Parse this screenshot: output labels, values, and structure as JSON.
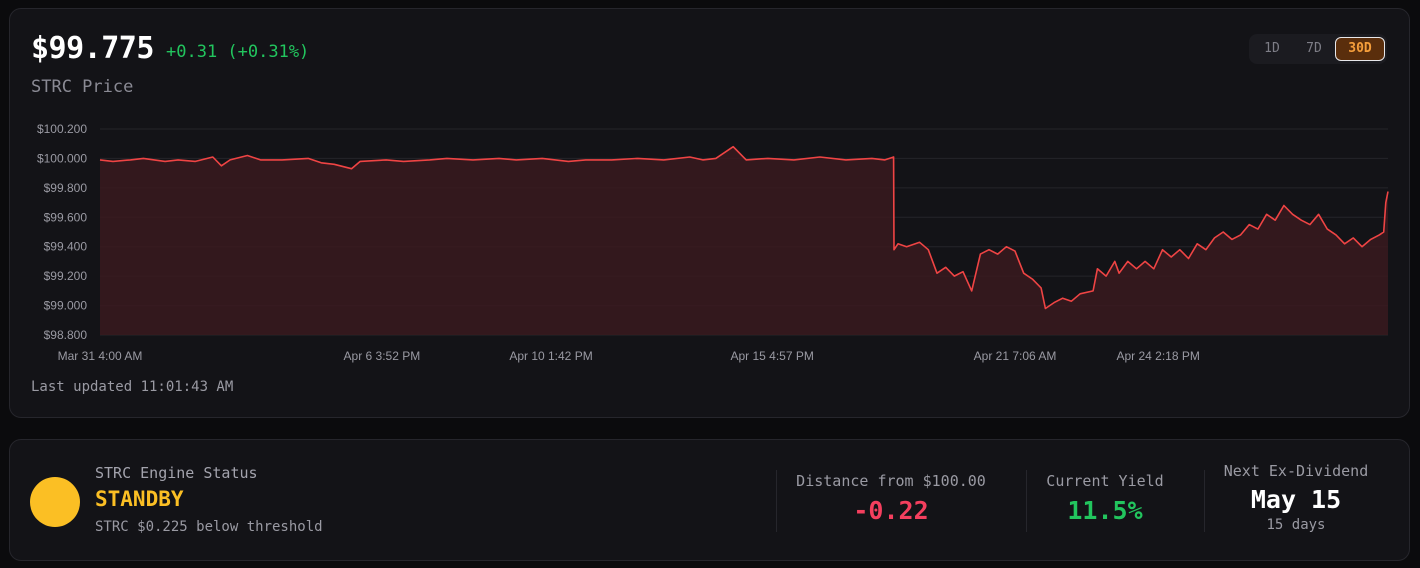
{
  "header": {
    "price": "$99.775",
    "change": "+0.31 (+0.31%)",
    "subtitle": "STRC Price",
    "last_updated": "Last updated 11:01:43 AM"
  },
  "timeframes": [
    {
      "label": "1D",
      "active": false
    },
    {
      "label": "7D",
      "active": false
    },
    {
      "label": "30D",
      "active": true
    }
  ],
  "colors": {
    "line": "#ef4444",
    "fill": "#3a1a1e",
    "positive": "#22c55e",
    "negative": "#f43f5e",
    "standby": "#fbbf24",
    "accent_orange": "#f59e3b"
  },
  "chart_data": {
    "type": "area",
    "ylim": [
      98.8,
      100.2
    ],
    "y_ticks": [
      "$100.200",
      "$100.000",
      "$99.800",
      "$99.600",
      "$99.400",
      "$99.200",
      "$99.000",
      "$98.800"
    ],
    "y_tick_values": [
      100.2,
      100.0,
      99.8,
      99.6,
      99.4,
      99.2,
      99.0,
      98.8
    ],
    "x_ticks": [
      "Mar 31 4:00 AM",
      "Apr 6 3:52 PM",
      "Apr 10 1:42 PM",
      "Apr 15 4:57 PM",
      "Apr 21 7:06 AM",
      "Apr 24 2:18 PM"
    ],
    "x_tick_values": [
      0.0,
      6.5,
      10.4,
      15.5,
      21.1,
      24.4
    ],
    "x_domain": [
      0.0,
      29.7
    ],
    "series": [
      {
        "points": [
          [
            0.0,
            99.99
          ],
          [
            0.3,
            99.98
          ],
          [
            0.7,
            99.99
          ],
          [
            1.0,
            100.0
          ],
          [
            1.5,
            99.98
          ],
          [
            1.8,
            99.99
          ],
          [
            2.2,
            99.98
          ],
          [
            2.6,
            100.01
          ],
          [
            2.8,
            99.95
          ],
          [
            3.0,
            99.99
          ],
          [
            3.4,
            100.02
          ],
          [
            3.7,
            99.99
          ],
          [
            4.2,
            99.99
          ],
          [
            4.8,
            100.0
          ],
          [
            5.1,
            99.97
          ],
          [
            5.4,
            99.96
          ],
          [
            5.8,
            99.93
          ],
          [
            6.0,
            99.98
          ],
          [
            6.6,
            99.99
          ],
          [
            7.0,
            99.98
          ],
          [
            7.6,
            99.99
          ],
          [
            8.0,
            100.0
          ],
          [
            8.6,
            99.99
          ],
          [
            9.2,
            100.0
          ],
          [
            9.6,
            99.99
          ],
          [
            10.2,
            100.0
          ],
          [
            10.8,
            99.98
          ],
          [
            11.2,
            99.99
          ],
          [
            11.8,
            99.99
          ],
          [
            12.4,
            100.0
          ],
          [
            13.0,
            99.99
          ],
          [
            13.6,
            100.01
          ],
          [
            13.9,
            99.99
          ],
          [
            14.2,
            100.0
          ],
          [
            14.6,
            100.08
          ],
          [
            14.9,
            99.99
          ],
          [
            15.4,
            100.0
          ],
          [
            16.0,
            99.99
          ],
          [
            16.6,
            100.01
          ],
          [
            17.2,
            99.99
          ],
          [
            17.8,
            100.0
          ],
          [
            18.1,
            99.99
          ],
          [
            18.3,
            100.01
          ],
          [
            18.31,
            99.38
          ],
          [
            18.4,
            99.42
          ],
          [
            18.6,
            99.4
          ],
          [
            18.9,
            99.43
          ],
          [
            19.1,
            99.38
          ],
          [
            19.3,
            99.22
          ],
          [
            19.5,
            99.26
          ],
          [
            19.7,
            99.2
          ],
          [
            19.9,
            99.23
          ],
          [
            20.1,
            99.1
          ],
          [
            20.3,
            99.35
          ],
          [
            20.5,
            99.38
          ],
          [
            20.7,
            99.35
          ],
          [
            20.9,
            99.4
          ],
          [
            21.1,
            99.37
          ],
          [
            21.3,
            99.22
          ],
          [
            21.5,
            99.18
          ],
          [
            21.7,
            99.12
          ],
          [
            21.8,
            98.98
          ],
          [
            22.0,
            99.02
          ],
          [
            22.2,
            99.05
          ],
          [
            22.4,
            99.03
          ],
          [
            22.6,
            99.08
          ],
          [
            22.9,
            99.1
          ],
          [
            23.0,
            99.25
          ],
          [
            23.2,
            99.2
          ],
          [
            23.4,
            99.3
          ],
          [
            23.5,
            99.22
          ],
          [
            23.7,
            99.3
          ],
          [
            23.9,
            99.25
          ],
          [
            24.1,
            99.3
          ],
          [
            24.3,
            99.25
          ],
          [
            24.5,
            99.38
          ],
          [
            24.7,
            99.33
          ],
          [
            24.9,
            99.38
          ],
          [
            25.1,
            99.32
          ],
          [
            25.3,
            99.42
          ],
          [
            25.5,
            99.38
          ],
          [
            25.7,
            99.46
          ],
          [
            25.9,
            99.5
          ],
          [
            26.1,
            99.45
          ],
          [
            26.3,
            99.48
          ],
          [
            26.5,
            99.55
          ],
          [
            26.7,
            99.52
          ],
          [
            26.9,
            99.62
          ],
          [
            27.1,
            99.58
          ],
          [
            27.3,
            99.68
          ],
          [
            27.5,
            99.62
          ],
          [
            27.7,
            99.58
          ],
          [
            27.9,
            99.55
          ],
          [
            28.1,
            99.62
          ],
          [
            28.3,
            99.52
          ],
          [
            28.5,
            99.48
          ],
          [
            28.7,
            99.42
          ],
          [
            28.9,
            99.46
          ],
          [
            29.1,
            99.4
          ],
          [
            29.3,
            99.45
          ],
          [
            29.5,
            99.48
          ],
          [
            29.6,
            99.5
          ],
          [
            29.65,
            99.7
          ],
          [
            29.7,
            99.775
          ]
        ]
      }
    ]
  },
  "status": {
    "engine_label": "STRC Engine Status",
    "engine_state": "STANDBY",
    "engine_note": "STRC $0.225 below threshold",
    "distance_label": "Distance from $100.00",
    "distance_value": "-0.22",
    "yield_label": "Current Yield",
    "yield_value": "11.5%",
    "exdiv_label": "Next Ex-Dividend",
    "exdiv_value": "May 15",
    "exdiv_sub": "15 days"
  }
}
